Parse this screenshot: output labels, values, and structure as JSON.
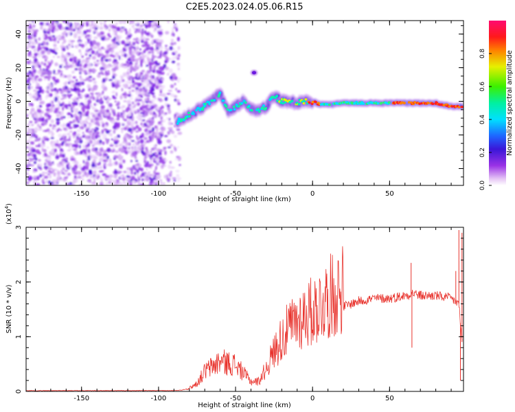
{
  "title": "C2E5.2023.024.05.06.R15",
  "chart_data": [
    {
      "type": "heatmap",
      "xlabel": "Height of straight line (km)",
      "ylabel": "Frequency (Hz)",
      "xlim": [
        -186,
        98
      ],
      "ylim": [
        -50,
        48
      ],
      "xticks": [
        -150,
        -100,
        -50,
        0,
        50
      ],
      "yticks": [
        -40,
        -20,
        0,
        20,
        40
      ],
      "noise_region_x": [
        -186,
        -86
      ],
      "signal_trace": {
        "x": [
          -88,
          -80,
          -70,
          -60,
          -55,
          -50,
          -45,
          -40,
          -35,
          -30,
          -25,
          -20,
          -15,
          -10,
          -5,
          0,
          5,
          10,
          20,
          30,
          40,
          50,
          60,
          70,
          80,
          90,
          97
        ],
        "frequency": [
          -12,
          -8,
          -3,
          5,
          -6,
          -3,
          0,
          -4,
          -6,
          -3,
          3,
          0,
          0,
          -1,
          0,
          0,
          -2,
          -2,
          -1,
          -1,
          -1,
          -1,
          -1,
          -1,
          -1,
          -3,
          -3
        ]
      },
      "isolated_blob": {
        "x": -38,
        "frequency": 17
      },
      "colorbar": {
        "label": "Normalized spectral amplitude",
        "range": [
          0,
          1
        ],
        "ticks": [
          "0.0",
          "0.2",
          "0.4",
          "0.6",
          "0.8"
        ]
      }
    },
    {
      "type": "line",
      "xlabel": "Height of straight line (km)",
      "ylabel": "SNR (10 * v/v)",
      "yscale_label": "(x10",
      "yscale_exponent": "4",
      "yscale_close": ")",
      "xlim": [
        -186,
        98
      ],
      "ylim": [
        0,
        3
      ],
      "xticks": [
        -150,
        -100,
        -50,
        0,
        50
      ],
      "yticks": [
        0,
        1,
        2,
        3
      ],
      "color": "#e8322c",
      "envelope": {
        "x": [
          -186,
          -90,
          -85,
          -80,
          -75,
          -70,
          -60,
          -50,
          -40,
          -35,
          -30,
          -25,
          -20,
          -15,
          -10,
          -5,
          0,
          5,
          10,
          20,
          30,
          40,
          50,
          60,
          65,
          70,
          80,
          90,
          95,
          97
        ],
        "y": [
          0.01,
          0.01,
          0.02,
          0.05,
          0.12,
          0.3,
          0.45,
          0.4,
          0.15,
          0.15,
          0.35,
          0.6,
          0.8,
          0.95,
          1.05,
          1.15,
          1.2,
          1.3,
          1.4,
          1.55,
          1.65,
          1.7,
          1.7,
          1.75,
          1.8,
          1.75,
          1.75,
          1.7,
          1.6,
          0.9
        ]
      },
      "spikes": [
        {
          "x": 64,
          "y": 2.35
        },
        {
          "x": 64.5,
          "y": 0.8
        },
        {
          "x": 93,
          "y": 2.2
        },
        {
          "x": 95,
          "y": 2.95
        },
        {
          "x": 96,
          "y": 0.2
        },
        {
          "x": 97,
          "y": 2.9
        }
      ]
    }
  ]
}
